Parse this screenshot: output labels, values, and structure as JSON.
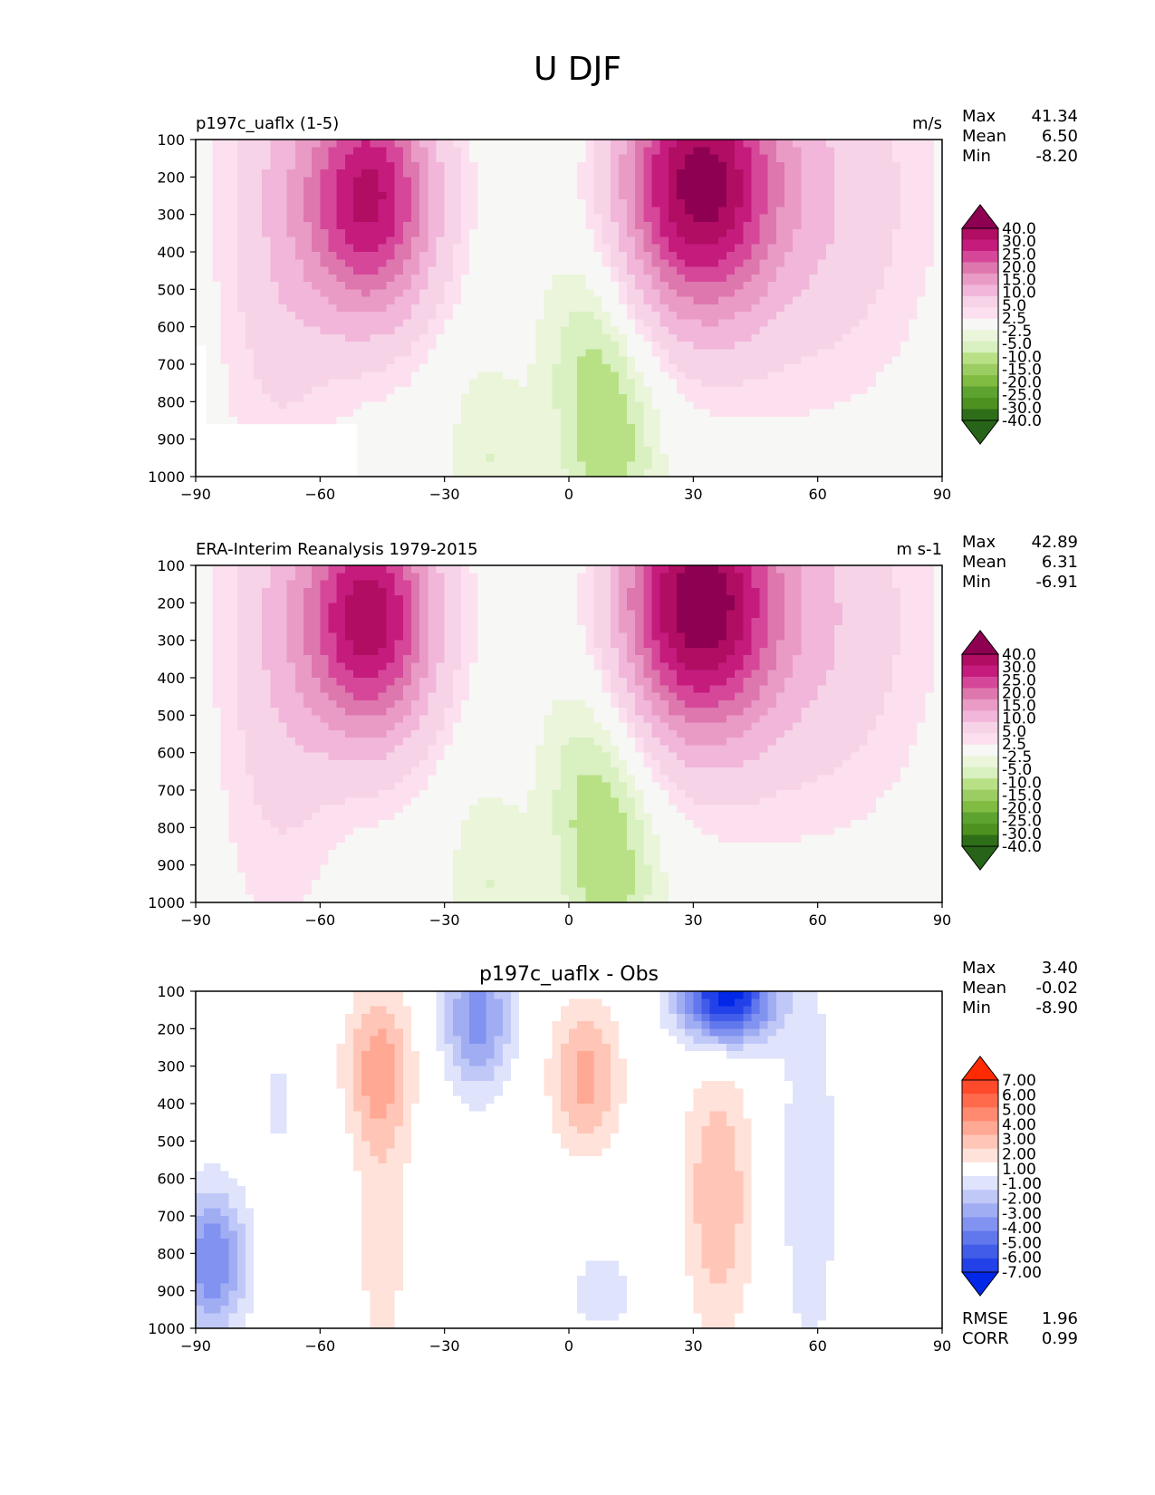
{
  "title": "U DJF",
  "axis": {
    "x_ticks": [
      "−90",
      "−60",
      "−30",
      "0",
      "30",
      "60",
      "90"
    ],
    "y_ticks": [
      "100",
      "200",
      "300",
      "400",
      "500",
      "600",
      "700",
      "800",
      "900",
      "1000"
    ]
  },
  "chart_data": [
    {
      "type": "heatmap",
      "plot_kind": "filled contour, latitude-pressure cross section",
      "title_left": "p197c_uaflx (1-5)",
      "units": "m/s",
      "xlim": [
        -90,
        90
      ],
      "ylim": [
        1000,
        100
      ],
      "stats": {
        "max_label": "Max",
        "max": "41.34",
        "mean_label": "Mean",
        "mean": "6.50",
        "min_label": "Min",
        "min": "-8.20"
      },
      "colorbar": {
        "levels": [
          "40.0",
          "30.0",
          "25.0",
          "20.0",
          "15.0",
          "10.0",
          "5.0",
          "2.5",
          "-2.5",
          "-5.0",
          "-10.0",
          "-15.0",
          "-20.0",
          "-25.0",
          "-30.0",
          "-40.0"
        ],
        "colors": [
          "#8e0152",
          "#b00d63",
          "#c51b7d",
          "#d6479a",
          "#de77ae",
          "#e99bc6",
          "#f1b6da",
          "#f7d3e8",
          "#fde0ef",
          "#f7f7f5",
          "#eaf5da",
          "#d9f0c0",
          "#b8e186",
          "#9ccd62",
          "#7fbc41",
          "#5ca32f",
          "#4d9221",
          "#2e6e18",
          "#276419"
        ]
      },
      "jets": [
        {
          "lat": -48,
          "p": 255,
          "peak": 36
        },
        {
          "lat": 31,
          "p": 220,
          "peak": 41
        }
      ]
    },
    {
      "type": "heatmap",
      "plot_kind": "filled contour, latitude-pressure cross section",
      "title_left": "ERA-Interim Reanalysis 1979-2015",
      "units": "m s-1",
      "xlim": [
        -90,
        90
      ],
      "ylim": [
        1000,
        100
      ],
      "stats": {
        "max_label": "Max",
        "max": "42.89",
        "mean_label": "Mean",
        "mean": "6.31",
        "min_label": "Min",
        "min": "-6.91"
      },
      "colorbar": {
        "levels": [
          "40.0",
          "30.0",
          "25.0",
          "20.0",
          "15.0",
          "10.0",
          "5.0",
          "2.5",
          "-2.5",
          "-5.0",
          "-10.0",
          "-15.0",
          "-20.0",
          "-25.0",
          "-30.0",
          "-40.0"
        ],
        "colors": [
          "#8e0152",
          "#b00d63",
          "#c51b7d",
          "#d6479a",
          "#de77ae",
          "#e99bc6",
          "#f1b6da",
          "#f7d3e8",
          "#fde0ef",
          "#f7f7f5",
          "#eaf5da",
          "#d9f0c0",
          "#b8e186",
          "#9ccd62",
          "#7fbc41",
          "#5ca32f",
          "#4d9221",
          "#2e6e18",
          "#276419"
        ]
      },
      "jets": [
        {
          "lat": -48,
          "p": 240,
          "peak": 38
        },
        {
          "lat": 31,
          "p": 200,
          "peak": 43
        }
      ]
    },
    {
      "type": "heatmap",
      "plot_kind": "filled contour, latitude-pressure cross section (difference)",
      "title_center": "p197c_uaflx - Obs",
      "xlim": [
        -90,
        90
      ],
      "ylim": [
        1000,
        100
      ],
      "stats": {
        "max_label": "Max",
        "max": "3.40",
        "mean_label": "Mean",
        "mean": "-0.02",
        "min_label": "Min",
        "min": "-8.90"
      },
      "extra_stats": {
        "rmse_label": "RMSE",
        "rmse": "1.96",
        "corr_label": "CORR",
        "corr": "0.99"
      },
      "colorbar": {
        "levels": [
          "7.00",
          "6.00",
          "5.00",
          "4.00",
          "3.00",
          "2.00",
          "1.00",
          "-1.00",
          "-2.00",
          "-3.00",
          "-4.00",
          "-5.00",
          "-6.00",
          "-7.00"
        ],
        "colors": [
          "#ff2a00",
          "#ff4a2b",
          "#ff6a4d",
          "#ff8a70",
          "#ffa894",
          "#ffc5b6",
          "#ffe2da",
          "#ffffff",
          "#dfe3fb",
          "#c0c8f7",
          "#a0adf3",
          "#8192f0",
          "#6177ec",
          "#425cea",
          "#2241e8",
          "#0227e6"
        ]
      },
      "features": [
        {
          "lat": -46,
          "p": 300,
          "value": 3.0
        },
        {
          "lat": 4,
          "p": 330,
          "value": 3.4
        },
        {
          "lat": 36,
          "p": 650,
          "value": 3.0
        },
        {
          "lat": -22,
          "p": 170,
          "value": -4.5
        },
        {
          "lat": 38,
          "p": 115,
          "value": -8.9
        },
        {
          "lat": -86,
          "p": 820,
          "value": -5.0
        }
      ]
    }
  ]
}
